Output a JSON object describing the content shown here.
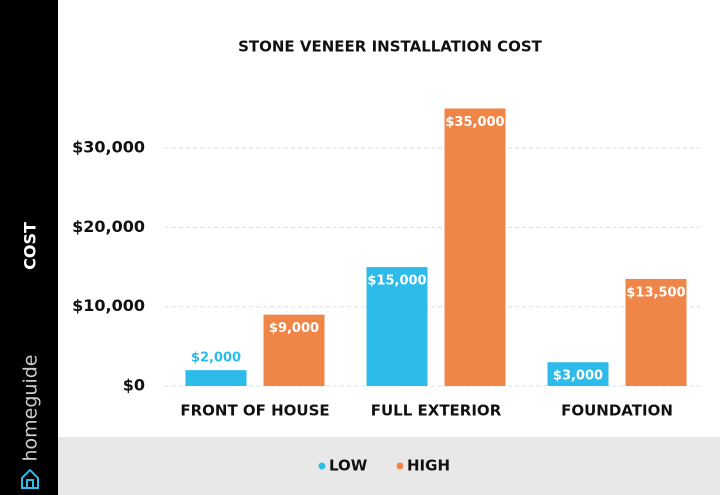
{
  "brand": "homeguide",
  "chart_data": {
    "type": "bar",
    "title": "STONE VENEER INSTALLATION COST",
    "y_label": "COST",
    "categories": [
      "FRONT OF HOUSE",
      "FULL EXTERIOR",
      "FOUNDATION"
    ],
    "series": [
      {
        "name": "LOW",
        "color": "#2dbbea",
        "values": [
          2000,
          15000,
          3000
        ],
        "value_labels": [
          "$2,000",
          "$15,000",
          "$3,000"
        ]
      },
      {
        "name": "HIGH",
        "color": "#f08548",
        "values": [
          9000,
          35000,
          13500
        ],
        "value_labels": [
          "$9,000",
          "$35,000",
          "$13,500"
        ]
      }
    ],
    "ylim": [
      0,
      38000
    ],
    "yticks": [
      {
        "value": 0,
        "label": "$0"
      },
      {
        "value": 10000,
        "label": "$10,000"
      },
      {
        "value": 20000,
        "label": "$20,000"
      },
      {
        "value": 30000,
        "label": "$30,000"
      }
    ],
    "grid": true,
    "legend": "bottom"
  }
}
